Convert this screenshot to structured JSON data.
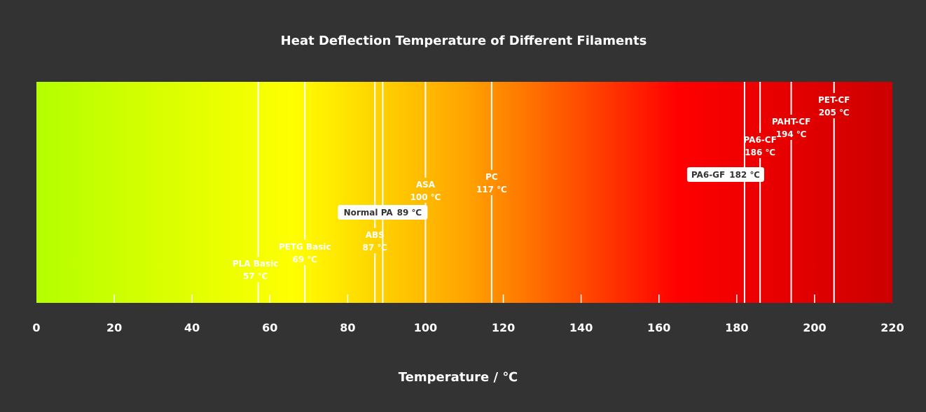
{
  "chart_data": {
    "type": "bar",
    "title": "Heat Deflection Temperature of Different Filaments",
    "xlabel": "Temperature / ℃",
    "ylabel": "",
    "xlim": [
      0,
      220
    ],
    "ticks": [
      "0",
      "20",
      "40",
      "60",
      "80",
      "100",
      "120",
      "140",
      "160",
      "180",
      "200",
      "220"
    ],
    "tick_values": [
      0,
      20,
      40,
      60,
      80,
      100,
      120,
      140,
      160,
      180,
      200,
      220
    ],
    "gradient_colors": [
      "#b4ff00",
      "#ffff00",
      "#ffa500",
      "#ff0000",
      "#cc0000"
    ],
    "grid": false,
    "materials": [
      {
        "name": "PLA Basic",
        "value": 57,
        "value_label": "57 ℃",
        "boxed": false
      },
      {
        "name": "PETG Basic",
        "value": 69,
        "value_label": "69 ℃",
        "boxed": false
      },
      {
        "name": "ABS",
        "value": 87,
        "value_label": "87 ℃",
        "boxed": false
      },
      {
        "name": "Normal PA",
        "value": 89,
        "value_label": "89 ℃",
        "boxed": true
      },
      {
        "name": "ASA",
        "value": 100,
        "value_label": "100 ℃",
        "boxed": false
      },
      {
        "name": "PC",
        "value": 117,
        "value_label": "117 ℃",
        "boxed": false
      },
      {
        "name": "PA6-GF",
        "value": 182,
        "value_label": "182 ℃",
        "boxed": true
      },
      {
        "name": "PA6-CF",
        "value": 186,
        "value_label": "186 ℃",
        "boxed": false
      },
      {
        "name": "PAHT-CF",
        "value": 194,
        "value_label": "194 ℃",
        "boxed": false
      },
      {
        "name": "PET-CF",
        "value": 205,
        "value_label": "205 ℃",
        "boxed": false
      }
    ]
  }
}
